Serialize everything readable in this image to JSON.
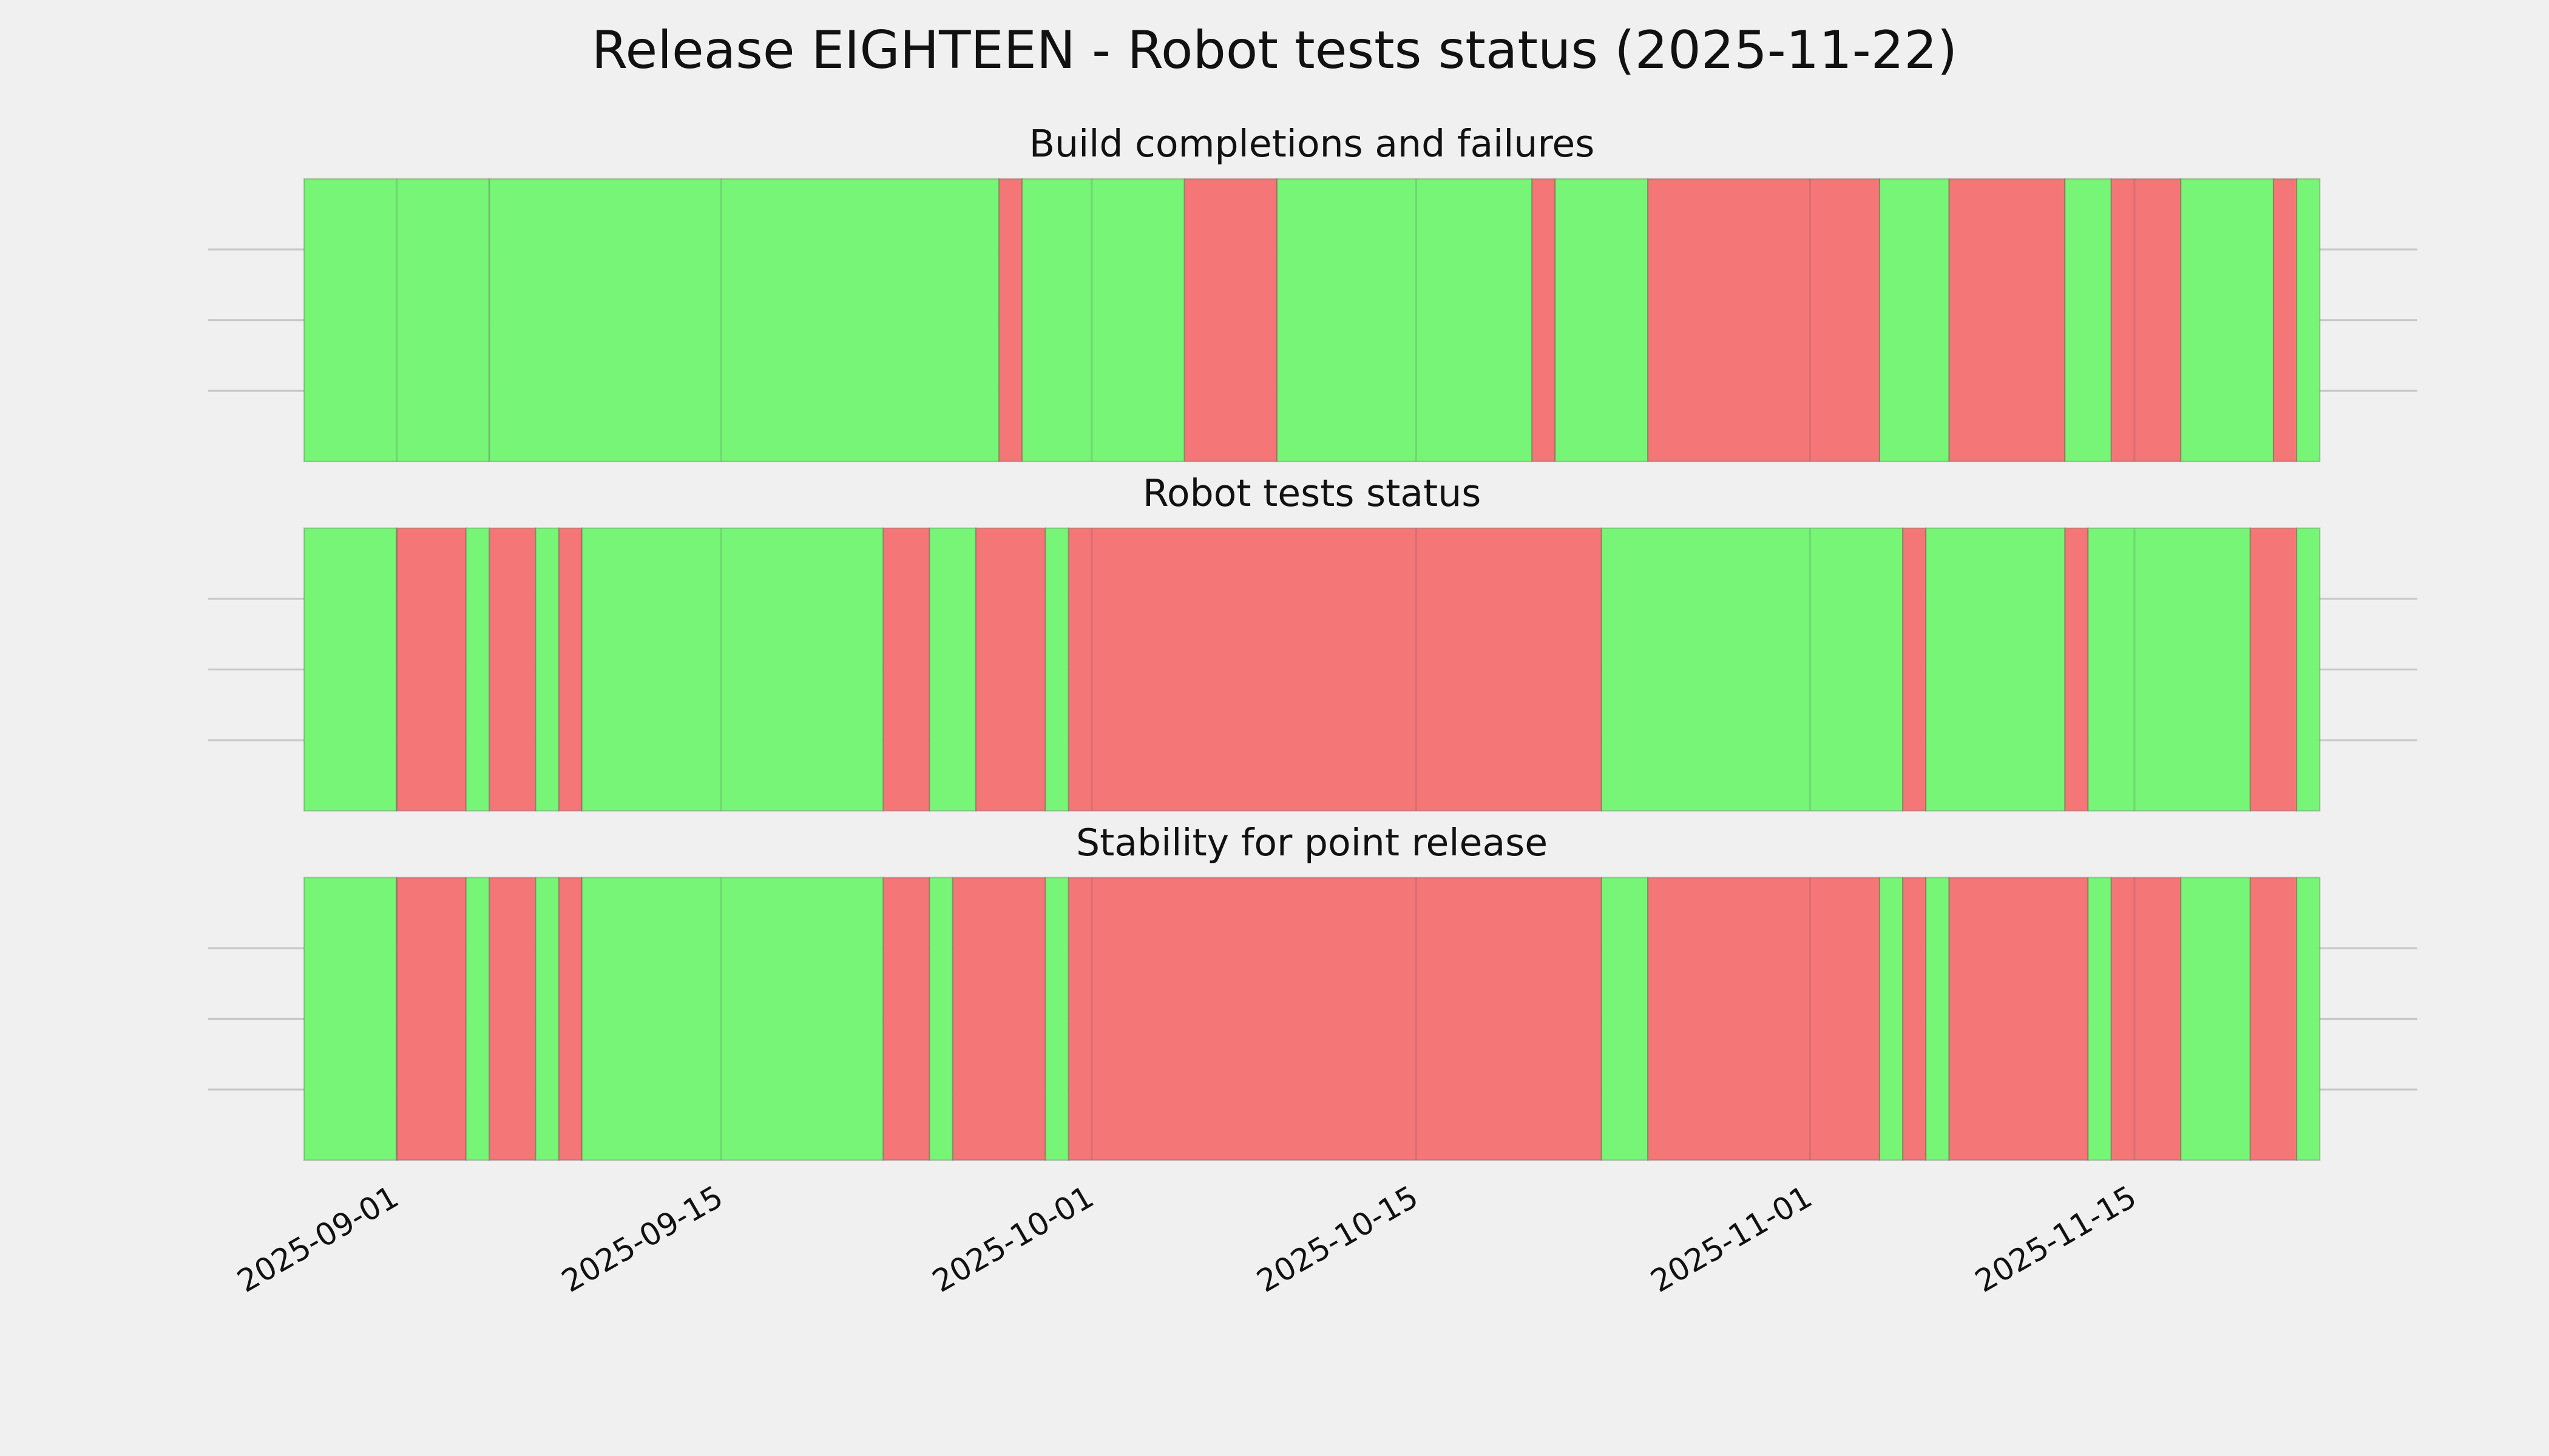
{
  "title": "Release EIGHTEEN - Robot tests status (2025-11-22)",
  "chart_data": [
    {
      "type": "timeline",
      "title": "Build completions and failures",
      "x": [
        "2025-08-28",
        "2025-09-05",
        "2025-09-27",
        "2025-09-28",
        "2025-10-05",
        "2025-10-09",
        "2025-10-20",
        "2025-10-21",
        "2025-10-25",
        "2025-11-04",
        "2025-11-07",
        "2025-11-12",
        "2025-11-14",
        "2025-11-17",
        "2025-11-21",
        "2025-11-22",
        "2025-11-23"
      ],
      "colors": [
        "#76f576",
        "#76f576",
        "#f57676",
        "#76f576",
        "#f57676",
        "#76f576",
        "#f57676",
        "#76f576",
        "#f57676",
        "#76f576",
        "#f57676",
        "#76f576",
        "#f57676",
        "#76f576",
        "#f57676",
        "#76f576"
      ],
      "xlim": [
        "2025-08-28",
        "2025-11-23"
      ],
      "xticks": [
        "2025-09-01",
        "2025-09-15",
        "2025-10-01",
        "2025-10-15",
        "2025-11-01",
        "2025-11-15"
      ],
      "ylim": [
        0,
        1
      ],
      "yticks": [
        0.25,
        0.5,
        0.75
      ],
      "grid": true
    },
    {
      "type": "timeline",
      "title": "Robot tests status",
      "x": [
        "2025-08-28",
        "2025-09-01",
        "2025-09-04",
        "2025-09-05",
        "2025-09-07",
        "2025-09-08",
        "2025-09-09",
        "2025-09-22",
        "2025-09-24",
        "2025-09-26",
        "2025-09-29",
        "2025-09-30",
        "2025-10-23",
        "2025-11-05",
        "2025-11-06",
        "2025-11-12",
        "2025-11-13",
        "2025-11-20",
        "2025-11-22",
        "2025-11-23"
      ],
      "colors": [
        "#76f576",
        "#f57676",
        "#76f576",
        "#f57676",
        "#76f576",
        "#f57676",
        "#76f576",
        "#f57676",
        "#76f576",
        "#f57676",
        "#76f576",
        "#f57676",
        "#76f576",
        "#f57676",
        "#76f576",
        "#f57676",
        "#76f576",
        "#f57676",
        "#76f576"
      ],
      "xlim": [
        "2025-08-28",
        "2025-11-23"
      ],
      "xticks": [
        "2025-09-01",
        "2025-09-15",
        "2025-10-01",
        "2025-10-15",
        "2025-11-01",
        "2025-11-15"
      ],
      "ylim": [
        0,
        1
      ],
      "yticks": [
        0.25,
        0.5,
        0.75
      ],
      "grid": true
    },
    {
      "type": "timeline",
      "title": "Stability for point release",
      "x": [
        "2025-08-28",
        "2025-09-01",
        "2025-09-04",
        "2025-09-05",
        "2025-09-07",
        "2025-09-08",
        "2025-09-09",
        "2025-09-22",
        "2025-09-24",
        "2025-09-25",
        "2025-09-29",
        "2025-09-30",
        "2025-10-23",
        "2025-10-25",
        "2025-11-04",
        "2025-11-05",
        "2025-11-06",
        "2025-11-07",
        "2025-11-13",
        "2025-11-14",
        "2025-11-17",
        "2025-11-20",
        "2025-11-22",
        "2025-11-23"
      ],
      "colors": [
        "#76f576",
        "#f57676",
        "#76f576",
        "#f57676",
        "#76f576",
        "#f57676",
        "#76f576",
        "#f57676",
        "#76f576",
        "#f57676",
        "#76f576",
        "#f57676",
        "#76f576",
        "#f57676",
        "#76f576",
        "#f57676",
        "#76f576",
        "#f57676",
        "#76f576",
        "#f57676",
        "#76f576",
        "#f57676",
        "#76f576"
      ],
      "xlim": [
        "2025-08-28",
        "2025-11-23"
      ],
      "xticks": [
        "2025-09-01",
        "2025-09-15",
        "2025-10-01",
        "2025-10-15",
        "2025-11-01",
        "2025-11-15"
      ],
      "ylim": [
        0,
        1
      ],
      "yticks": [
        0.25,
        0.5,
        0.75
      ],
      "grid": true,
      "show_xtick_labels": true
    }
  ]
}
